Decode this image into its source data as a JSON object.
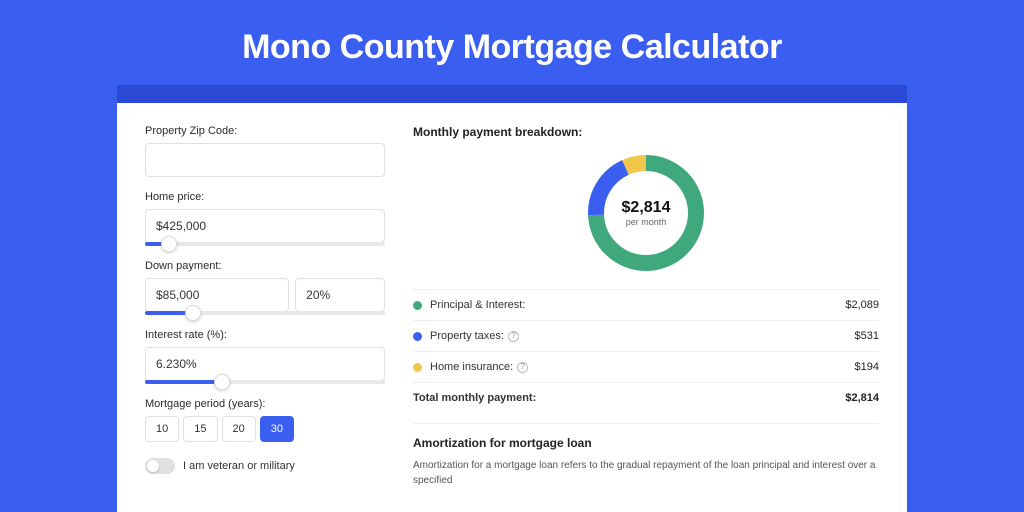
{
  "page": {
    "title": "Mono County Mortgage Calculator",
    "background_color": "#3a5ff0",
    "header_band_color": "#2a4ad6",
    "panel_bg": "#ffffff"
  },
  "form": {
    "zip": {
      "label": "Property Zip Code:",
      "value": ""
    },
    "home_price": {
      "label": "Home price:",
      "value": "$425,000",
      "slider_pct": 10
    },
    "down_payment": {
      "label": "Down payment:",
      "amount": "$85,000",
      "percent": "20%",
      "slider_pct": 20
    },
    "interest_rate": {
      "label": "Interest rate (%):",
      "value": "6.230%",
      "slider_pct": 32
    },
    "mortgage_period": {
      "label": "Mortgage period (years):",
      "options": [
        "10",
        "15",
        "20",
        "30"
      ],
      "selected": "30"
    },
    "veteran": {
      "label": "I am veteran or military",
      "checked": false
    }
  },
  "breakdown": {
    "title": "Monthly payment breakdown:",
    "donut": {
      "center_value": "$2,814",
      "center_label": "per month",
      "stroke_width": 16,
      "radius": 50,
      "segments": [
        {
          "key": "principal_interest",
          "value": 2089,
          "color": "#3fa97d"
        },
        {
          "key": "property_taxes",
          "value": 531,
          "color": "#3a5ff0"
        },
        {
          "key": "home_insurance",
          "value": 194,
          "color": "#f0c74a"
        }
      ]
    },
    "rows": [
      {
        "dot": "#3fa97d",
        "label": "Principal & Interest:",
        "info": false,
        "value": "$2,089"
      },
      {
        "dot": "#3a5ff0",
        "label": "Property taxes:",
        "info": true,
        "value": "$531"
      },
      {
        "dot": "#f0c74a",
        "label": "Home insurance:",
        "info": true,
        "value": "$194"
      }
    ],
    "total": {
      "label": "Total monthly payment:",
      "value": "$2,814"
    }
  },
  "amortization": {
    "title": "Amortization for mortgage loan",
    "text": "Amortization for a mortgage loan refers to the gradual repayment of the loan principal and interest over a specified"
  }
}
